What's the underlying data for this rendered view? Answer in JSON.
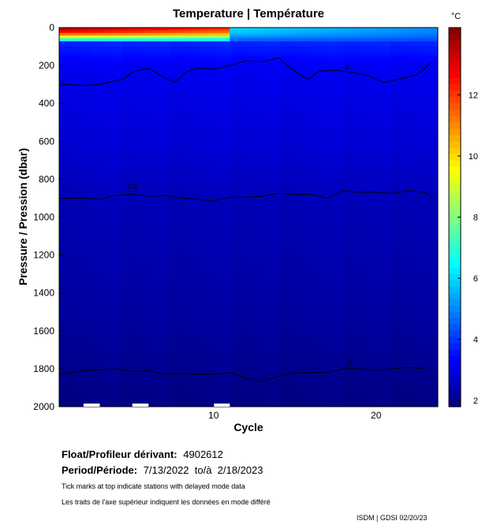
{
  "chart_data": {
    "type": "heatmap",
    "title": "Temperature | Température",
    "xlabel": "Cycle",
    "ylabel": "Pressure / Pression (dbar)",
    "xlim": [
      0.5,
      23.8
    ],
    "ylim": [
      2000,
      0
    ],
    "y_inverted": true,
    "x_ticks": [
      10,
      20
    ],
    "y_ticks": [
      0,
      200,
      400,
      600,
      800,
      1000,
      1200,
      1400,
      1600,
      1800,
      2000
    ],
    "colorbar": {
      "unit": "°C",
      "range": [
        1.8,
        14.2
      ],
      "ticks": [
        2,
        4,
        6,
        8,
        10,
        12
      ],
      "colormap": "jet"
    },
    "contours": [
      {
        "level": 3,
        "label": "3",
        "label_at": [
          18.2,
          220
        ],
        "points": [
          [
            0.5,
            300
          ],
          [
            2,
            305
          ],
          [
            3,
            300
          ],
          [
            4.5,
            270
          ],
          [
            5,
            235
          ],
          [
            6,
            215
          ],
          [
            7,
            265
          ],
          [
            7.6,
            290
          ],
          [
            8.3,
            235
          ],
          [
            9,
            215
          ],
          [
            10,
            220
          ],
          [
            11,
            200
          ],
          [
            12,
            175
          ],
          [
            13,
            180
          ],
          [
            14,
            160
          ],
          [
            15,
            230
          ],
          [
            15.8,
            275
          ],
          [
            16.5,
            230
          ],
          [
            17.5,
            225
          ],
          [
            18.5,
            235
          ],
          [
            19.5,
            255
          ],
          [
            20.5,
            290
          ],
          [
            21.5,
            270
          ],
          [
            22.5,
            250
          ],
          [
            23.4,
            185
          ]
        ]
      },
      {
        "level": 2.5,
        "label": "2.5",
        "label_at": [
          5,
          850
        ],
        "points": [
          [
            0.5,
            900
          ],
          [
            2,
            900
          ],
          [
            3,
            905
          ],
          [
            4,
            885
          ],
          [
            5,
            880
          ],
          [
            6,
            890
          ],
          [
            7,
            885
          ],
          [
            8,
            900
          ],
          [
            9,
            905
          ],
          [
            10,
            915
          ],
          [
            11,
            895
          ],
          [
            12,
            895
          ],
          [
            13,
            890
          ],
          [
            14,
            875
          ],
          [
            15,
            880
          ],
          [
            16,
            880
          ],
          [
            17,
            900
          ],
          [
            18,
            860
          ],
          [
            19,
            870
          ],
          [
            20,
            868
          ],
          [
            21,
            875
          ],
          [
            22,
            860
          ],
          [
            23,
            870
          ],
          [
            23.5,
            900
          ]
        ]
      },
      {
        "level": 2,
        "label": "2",
        "label_at": [
          18.4,
          1780
        ],
        "points": [
          [
            0.5,
            1830
          ],
          [
            2,
            1810
          ],
          [
            3,
            1805
          ],
          [
            4,
            1800
          ],
          [
            5,
            1815
          ],
          [
            6,
            1810
          ],
          [
            7,
            1830
          ],
          [
            8,
            1825
          ],
          [
            9,
            1830
          ],
          [
            10,
            1830
          ],
          [
            11,
            1820
          ],
          [
            12,
            1850
          ],
          [
            13,
            1865
          ],
          [
            14,
            1840
          ],
          [
            15,
            1820
          ],
          [
            16,
            1820
          ],
          [
            17,
            1820
          ],
          [
            18,
            1800
          ],
          [
            19,
            1800
          ],
          [
            20,
            1808
          ],
          [
            21,
            1800
          ],
          [
            22,
            1792
          ],
          [
            23,
            1800
          ]
        ]
      }
    ],
    "surface_band": {
      "warm_cycles": [
        0.5,
        11.0
      ],
      "cool_cycles": [
        11.0,
        23.8
      ],
      "warm_temps": [
        13.5,
        12.0
      ],
      "cool_temps": [
        6.0,
        5.0
      ],
      "mixed_layer_depth_dbar": 70
    },
    "deep_profile": [
      {
        "p": 80,
        "t": 3.8
      },
      {
        "p": 200,
        "t": 3.2
      },
      {
        "p": 400,
        "t": 3.0
      },
      {
        "p": 600,
        "t": 2.85
      },
      {
        "p": 900,
        "t": 2.5
      },
      {
        "p": 1200,
        "t": 2.35
      },
      {
        "p": 1500,
        "t": 2.2
      },
      {
        "p": 1800,
        "t": 2.0
      },
      {
        "p": 2000,
        "t": 1.85
      }
    ],
    "delayed_mode_marks": [
      [
        2.0,
        3.0
      ],
      [
        5.0,
        6.0
      ],
      [
        10.0,
        11.0
      ]
    ]
  },
  "info": {
    "float_label": "Float/Profileur dérivant:",
    "float_id": "4902612",
    "period_label": "Period/Période:",
    "period_value": "7/13/2022  to/à  2/18/2023",
    "note_en": "Tick marks at top indicate stations with delayed mode data",
    "note_fr": "Les traits de l'axe supérieur indiquent les données en mode différé",
    "credit": "ISDM | GDSI  02/20/23"
  }
}
